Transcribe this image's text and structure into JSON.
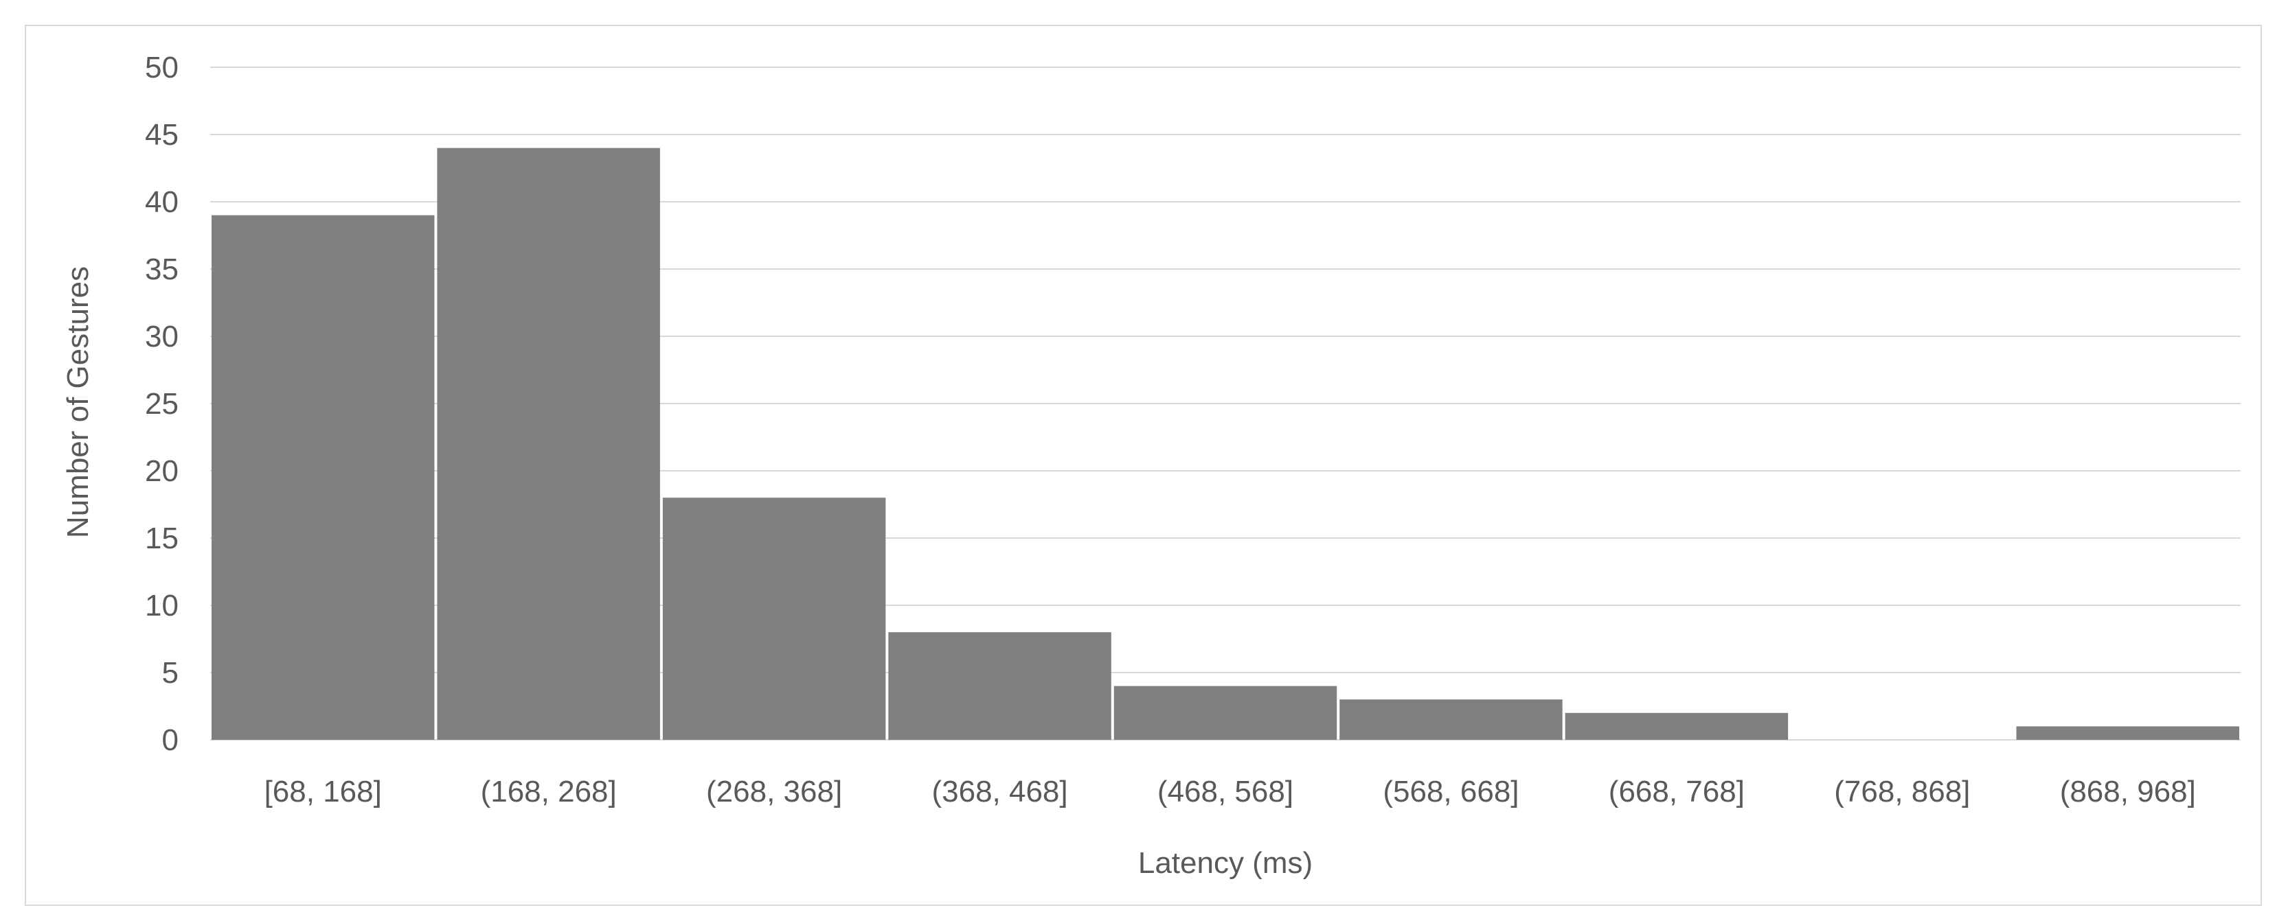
{
  "chart_data": {
    "type": "bar",
    "title": "",
    "xlabel": "Latency (ms)",
    "ylabel": "Number of Gestures",
    "categories": [
      "[68, 168]",
      "(168, 268]",
      "(268, 368]",
      "(368, 468]",
      "(468, 568]",
      "(568, 668]",
      "(668, 768]",
      "(768, 868]",
      "(868, 968]"
    ],
    "values": [
      39,
      44,
      18,
      8,
      4,
      3,
      2,
      0,
      1
    ],
    "ylim": [
      0,
      50
    ],
    "yticks": [
      0,
      5,
      10,
      15,
      20,
      25,
      30,
      35,
      40,
      45,
      50
    ],
    "grid": true,
    "legend": "none",
    "colors": {
      "bar": "#7f7f7f",
      "grid": "#d9d9d9",
      "text": "#595959"
    }
  }
}
